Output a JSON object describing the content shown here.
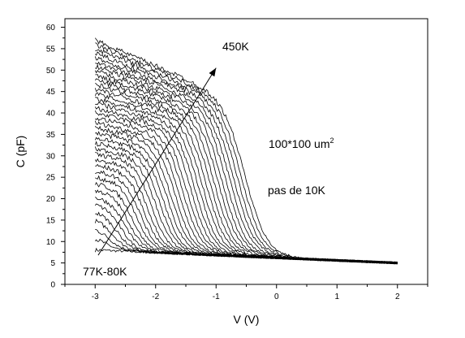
{
  "chart_data": {
    "type": "line",
    "title": "",
    "xlabel": "V (V)",
    "ylabel": "C (pF)",
    "xlim": [
      -3.5,
      2.5
    ],
    "ylim": [
      0,
      62
    ],
    "x_ticks": [
      "-3",
      "-2",
      "-1",
      "0",
      "1",
      "2"
    ],
    "y_ticks": [
      "0",
      "5",
      "10",
      "15",
      "20",
      "25",
      "30",
      "35",
      "40",
      "45",
      "50",
      "55",
      "60"
    ],
    "grid": false,
    "legend": "none",
    "line_color": "#000000",
    "temperature_range_K": [
      80,
      450
    ],
    "temperature_step_K": 10,
    "curve_count": 38,
    "min_temperature_plateau_pF": 8,
    "max_temperature_plateau_pF": 57,
    "transition_voltage_low_T_V": -2.9,
    "transition_voltage_high_T_V": -0.5,
    "low_bias_floor_pF": [
      8,
      5
    ],
    "arrow": {
      "from": [
        -2.95,
        6.8
      ],
      "to": [
        -1.0,
        50.5
      ]
    },
    "annotations": {
      "high_temp": "450K",
      "low_temp": "77K-80K",
      "area": "100*100 um",
      "area_exp": "2",
      "step": "pas de 10K"
    }
  }
}
